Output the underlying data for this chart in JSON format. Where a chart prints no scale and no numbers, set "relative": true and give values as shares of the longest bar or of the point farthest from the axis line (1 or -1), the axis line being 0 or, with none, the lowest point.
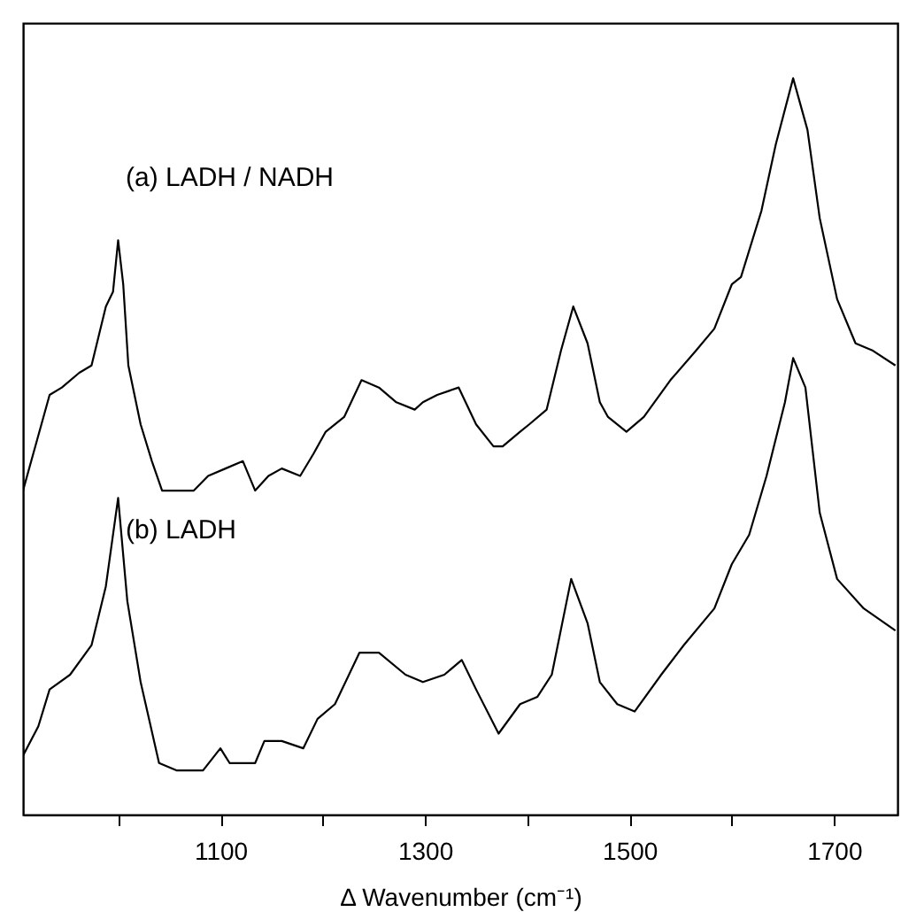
{
  "chart_data": {
    "type": "line",
    "relative": true,
    "xlabel": "Δ Wavenumber (cm⁻¹)",
    "xlim": [
      907,
      1762
    ],
    "xticks": [
      {
        "value": 1000,
        "label": null
      },
      1100,
      {
        "value": 1200,
        "label": null
      },
      1300,
      {
        "value": 1400,
        "label": null
      },
      1500,
      {
        "value": 1600,
        "label": null
      },
      1700
    ],
    "grid": false,
    "marker": "none",
    "line_style": "solid",
    "series": [
      {
        "name": "(a) LADH / NADH",
        "color": "#000000",
        "x": [
          907,
          919,
          933,
          945,
          962,
          974,
          988,
          995,
          1000,
          1005,
          1010,
          1022,
          1033,
          1043,
          1057,
          1074,
          1088,
          1105,
          1122,
          1134,
          1147,
          1160,
          1178,
          1191,
          1203,
          1221,
          1238,
          1255,
          1272,
          1290,
          1298,
          1312,
          1333,
          1350,
          1367,
          1376,
          1393,
          1402,
          1419,
          1433,
          1445,
          1459,
          1471,
          1479,
          1497,
          1514,
          1540,
          1565,
          1583,
          1600,
          1609,
          1629,
          1643,
          1660,
          1674,
          1686,
          1703,
          1721,
          1738,
          1760
        ],
        "values": [
          0.44,
          0.5,
          0.57,
          0.58,
          0.6,
          0.61,
          0.69,
          0.71,
          0.78,
          0.72,
          0.61,
          0.53,
          0.48,
          0.44,
          0.44,
          0.44,
          0.46,
          0.47,
          0.48,
          0.44,
          0.46,
          0.47,
          0.46,
          0.49,
          0.52,
          0.54,
          0.59,
          0.58,
          0.56,
          0.55,
          0.56,
          0.57,
          0.58,
          0.53,
          0.5,
          0.5,
          0.52,
          0.53,
          0.55,
          0.63,
          0.69,
          0.64,
          0.56,
          0.54,
          0.52,
          0.54,
          0.59,
          0.63,
          0.66,
          0.72,
          0.73,
          0.82,
          0.91,
          1.0,
          0.93,
          0.81,
          0.7,
          0.64,
          0.63,
          0.61
        ]
      },
      {
        "name": "(b) LADH",
        "color": "#000000",
        "x": [
          907,
          922,
          933,
          953,
          974,
          988,
          1000,
          1009,
          1022,
          1040,
          1057,
          1083,
          1100,
          1109,
          1134,
          1143,
          1160,
          1181,
          1195,
          1212,
          1236,
          1255,
          1281,
          1298,
          1319,
          1336,
          1350,
          1372,
          1393,
          1410,
          1424,
          1443,
          1459,
          1471,
          1488,
          1505,
          1531,
          1553,
          1583,
          1600,
          1617,
          1634,
          1652,
          1660,
          1672,
          1686,
          1703,
          1729,
          1760
        ],
        "values": [
          0.08,
          0.12,
          0.17,
          0.19,
          0.23,
          0.31,
          0.43,
          0.29,
          0.18,
          0.07,
          0.06,
          0.06,
          0.09,
          0.07,
          0.07,
          0.1,
          0.1,
          0.09,
          0.13,
          0.15,
          0.22,
          0.22,
          0.19,
          0.18,
          0.19,
          0.21,
          0.17,
          0.11,
          0.15,
          0.16,
          0.19,
          0.32,
          0.26,
          0.18,
          0.15,
          0.14,
          0.19,
          0.23,
          0.28,
          0.34,
          0.38,
          0.46,
          0.56,
          0.62,
          0.58,
          0.41,
          0.32,
          0.28,
          0.25
        ]
      }
    ]
  }
}
